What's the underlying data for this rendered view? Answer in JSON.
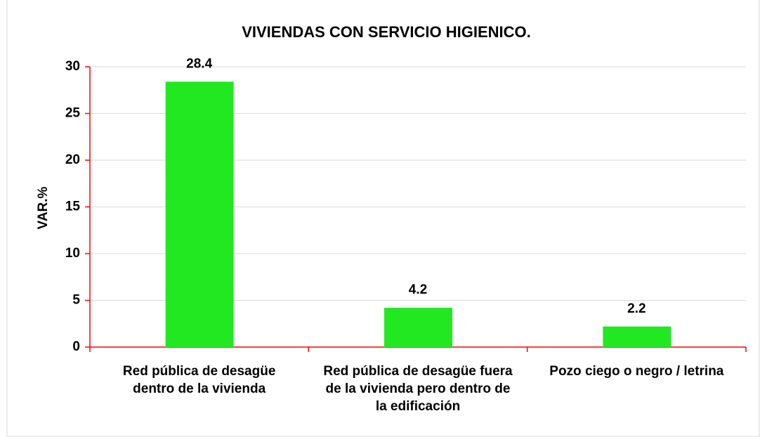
{
  "chart_data": {
    "type": "bar",
    "title": "VIVIENDAS CON SERVICIO HIGIENICO.",
    "y_label": "VAR.%",
    "categories": [
      "Red pública de desagüe dentro de la vivienda",
      "Red pública de desagüe fuera de la vivienda pero dentro de la edificación",
      "Pozo ciego o negro / letrina"
    ],
    "values": [
      28.4,
      4.2,
      2.2
    ],
    "color": "#22e822",
    "axis_color": "#ff0000",
    "ylim": [
      0,
      30
    ],
    "yticks": [
      0,
      5,
      10,
      15,
      20,
      25,
      30
    ],
    "grid": true
  }
}
